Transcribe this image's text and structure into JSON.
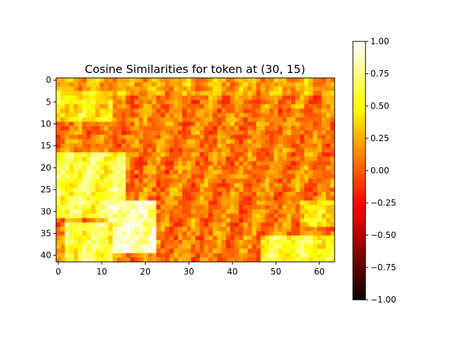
{
  "chart_data": {
    "type": "heatmap",
    "title": "Cosine Similarities for token at (30, 15)",
    "xlabel": "",
    "ylabel": "",
    "grid": false,
    "cols": 64,
    "rows": 42,
    "xlim": [
      -0.5,
      63.5
    ],
    "ylim": [
      41.5,
      -0.5
    ],
    "x_ticks": [
      0,
      10,
      20,
      30,
      40,
      50,
      60
    ],
    "y_ticks": [
      0,
      5,
      10,
      15,
      20,
      25,
      30,
      35,
      40
    ],
    "colormap": "hot",
    "colorbar": {
      "placement": "right",
      "vmin": -1.0,
      "vmax": 1.0,
      "ticks": [
        -1.0,
        -0.75,
        -0.5,
        -0.25,
        0.0,
        0.25,
        0.5,
        0.75,
        1.0
      ],
      "tick_labels": [
        "−1.00",
        "−0.75",
        "−0.50",
        "−0.25",
        "0.00",
        "0.25",
        "0.50",
        "0.75",
        "1.00"
      ]
    },
    "value_regions": [
      {
        "description": "background texture",
        "cols": [
          0,
          63
        ],
        "rows": [
          0,
          41
        ],
        "value": 0.1
      },
      {
        "description": "upper band",
        "cols": [
          0,
          63
        ],
        "rows": [
          0,
          3
        ],
        "value": 0.22
      },
      {
        "description": "left upper patch",
        "cols": [
          0,
          12
        ],
        "rows": [
          3,
          9
        ],
        "value": 0.45
      },
      {
        "description": "left bright blob",
        "cols": [
          0,
          15
        ],
        "rows": [
          17,
          31
        ],
        "value": 0.62
      },
      {
        "description": "white bright region near token",
        "cols": [
          12,
          22
        ],
        "rows": [
          28,
          39
        ],
        "value": 0.85
      },
      {
        "description": "lower left bright strip",
        "cols": [
          2,
          12
        ],
        "rows": [
          33,
          41
        ],
        "value": 0.6
      },
      {
        "description": "lower right bright blob",
        "cols": [
          47,
          63
        ],
        "rows": [
          36,
          41
        ],
        "value": 0.55
      },
      {
        "description": "right middle patch",
        "cols": [
          56,
          63
        ],
        "rows": [
          28,
          33
        ],
        "value": 0.4
      }
    ]
  }
}
